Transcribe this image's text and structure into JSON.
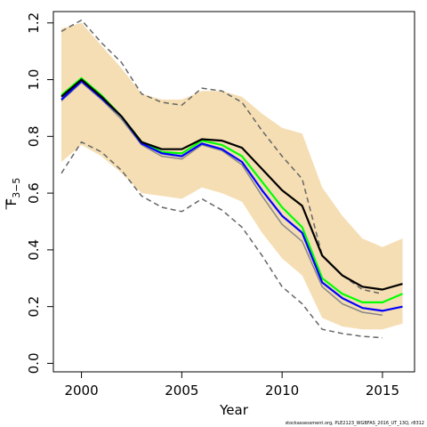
{
  "chart_data": {
    "type": "line",
    "title": "",
    "xlabel": "Year",
    "ylabel_main": "F",
    "ylabel_sub": "3−5",
    "xlim": [
      1998.6,
      2016.6
    ],
    "ylim": [
      -0.03,
      1.24
    ],
    "x_ticks": [
      2000,
      2005,
      2010,
      2015
    ],
    "y_ticks": [
      0.0,
      0.2,
      0.4,
      0.6,
      0.8,
      1.0,
      1.2
    ],
    "y_tick_labels": [
      "0.0",
      "0.2",
      "0.4",
      "0.6",
      "0.8",
      "1.0",
      "1.2"
    ],
    "x": [
      1999,
      2000,
      2001,
      2002,
      2003,
      2004,
      2005,
      2006,
      2007,
      2008,
      2009,
      2010,
      2011,
      2012,
      2013,
      2014,
      2015,
      2016
    ],
    "band": {
      "color": "#f5deb3",
      "upper": [
        1.18,
        1.2,
        1.12,
        1.04,
        0.95,
        0.93,
        0.93,
        0.96,
        0.96,
        0.94,
        0.88,
        0.83,
        0.81,
        0.62,
        0.52,
        0.44,
        0.41,
        0.44
      ],
      "lower": [
        0.71,
        0.77,
        0.73,
        0.67,
        0.6,
        0.59,
        0.58,
        0.62,
        0.6,
        0.57,
        0.46,
        0.37,
        0.31,
        0.16,
        0.13,
        0.12,
        0.12,
        0.14
      ]
    },
    "series": [
      {
        "color": "#666666",
        "dash": true,
        "width": 1.5,
        "x": [
          1999,
          2000,
          2001,
          2002,
          2003,
          2004,
          2005,
          2006,
          2007,
          2008,
          2009,
          2010,
          2011,
          2012,
          2013,
          2014,
          2015,
          2016
        ],
        "values": [
          1.17,
          1.21,
          1.13,
          1.06,
          0.95,
          0.92,
          0.91,
          0.97,
          0.96,
          0.92,
          0.82,
          0.73,
          0.65,
          0.38,
          0.31,
          0.26,
          0.245,
          null
        ]
      },
      {
        "color": "#666666",
        "dash": true,
        "width": 1.5,
        "x": [
          1999,
          2000,
          2001,
          2002,
          2003,
          2004,
          2005,
          2006,
          2007,
          2008,
          2009,
          2010,
          2011,
          2012,
          2013,
          2014,
          2015,
          2016
        ],
        "values": [
          0.67,
          0.78,
          0.745,
          0.68,
          0.59,
          0.55,
          0.535,
          0.58,
          0.54,
          0.48,
          0.38,
          0.27,
          0.21,
          0.12,
          0.105,
          0.095,
          0.09,
          null
        ]
      },
      {
        "color": "#888888",
        "dash": false,
        "width": 1.5,
        "x": [
          1999,
          2000,
          2001,
          2002,
          2003,
          2004,
          2005,
          2006,
          2007,
          2008,
          2009,
          2010,
          2011,
          2012,
          2013,
          2014,
          2015,
          2016
        ],
        "values": [
          0.925,
          0.99,
          0.93,
          0.86,
          0.77,
          0.73,
          0.72,
          0.77,
          0.75,
          0.7,
          0.59,
          0.49,
          0.43,
          0.27,
          0.21,
          0.18,
          0.17,
          null
        ]
      },
      {
        "color": "#00ff00",
        "dash": false,
        "width": 2.2,
        "x": [
          1999,
          2000,
          2001,
          2002,
          2003,
          2004,
          2005,
          2006,
          2007,
          2008,
          2009,
          2010,
          2011,
          2012,
          2013,
          2014,
          2015,
          2016
        ],
        "values": [
          0.945,
          1.005,
          0.945,
          0.87,
          0.78,
          0.745,
          0.74,
          0.785,
          0.77,
          0.73,
          0.64,
          0.55,
          0.48,
          0.3,
          0.245,
          0.215,
          0.215,
          0.245
        ]
      },
      {
        "color": "#0000ff",
        "dash": false,
        "width": 2.2,
        "x": [
          1999,
          2000,
          2001,
          2002,
          2003,
          2004,
          2005,
          2006,
          2007,
          2008,
          2009,
          2010,
          2011,
          2012,
          2013,
          2014,
          2015,
          2016
        ],
        "values": [
          0.93,
          0.995,
          0.935,
          0.87,
          0.775,
          0.74,
          0.73,
          0.775,
          0.755,
          0.71,
          0.61,
          0.52,
          0.46,
          0.285,
          0.23,
          0.195,
          0.185,
          0.2
        ]
      },
      {
        "color": "#000000",
        "dash": false,
        "width": 2.2,
        "x": [
          1999,
          2000,
          2001,
          2002,
          2003,
          2004,
          2005,
          2006,
          2007,
          2008,
          2009,
          2010,
          2011,
          2012,
          2013,
          2014,
          2015,
          2016
        ],
        "values": [
          0.94,
          1.0,
          0.94,
          0.87,
          0.78,
          0.755,
          0.755,
          0.79,
          0.785,
          0.76,
          0.685,
          0.61,
          0.555,
          0.38,
          0.31,
          0.27,
          0.26,
          0.28
        ]
      }
    ]
  },
  "credit": "stockassessment.org, PLE2123_WGBFAS_2016_UT_13Q, r8312"
}
